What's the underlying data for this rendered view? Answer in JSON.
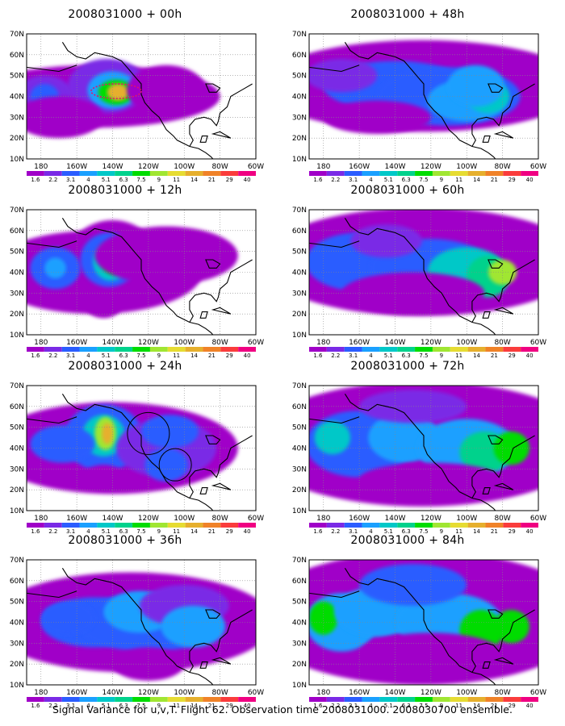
{
  "panels": [
    {
      "title": "2008031000 + 00h",
      "forecast_hour": 0
    },
    {
      "title": "2008031000 + 48h",
      "forecast_hour": 48
    },
    {
      "title": "2008031000 + 12h",
      "forecast_hour": 12
    },
    {
      "title": "2008031000 + 60h",
      "forecast_hour": 60
    },
    {
      "title": "2008031000 + 24h",
      "forecast_hour": 24
    },
    {
      "title": "2008031000 + 72h",
      "forecast_hour": 72
    },
    {
      "title": "2008031000 + 36h",
      "forecast_hour": 36
    },
    {
      "title": "2008031000 + 84h",
      "forecast_hour": 84
    }
  ],
  "axes": {
    "lon_labels": [
      "180",
      "160W",
      "140W",
      "120W",
      "100W",
      "80W",
      "60W"
    ],
    "lat_labels": [
      "70N",
      "60N",
      "50N",
      "40N",
      "30N",
      "20N",
      "10N"
    ],
    "lon_range": [
      -188,
      -60
    ],
    "lat_range": [
      10,
      70
    ]
  },
  "color_scale": {
    "labels": [
      "1.6",
      "2.2",
      "3.1",
      "4",
      "5.1",
      "6.3",
      "7.5",
      "9",
      "11",
      "14",
      "21",
      "29",
      "40"
    ],
    "colors": [
      "#a000c8",
      "#7a2ae6",
      "#2b5dff",
      "#1aa0ff",
      "#00c8c8",
      "#00d28c",
      "#00dc00",
      "#a0e632",
      "#e6dc32",
      "#e6af2d",
      "#f08228",
      "#fa3c3c",
      "#f00082"
    ]
  },
  "footer": "Signal Variance for u,v,T. Flight 62. Observation time 2008031000. 2008030700 ensemble."
}
